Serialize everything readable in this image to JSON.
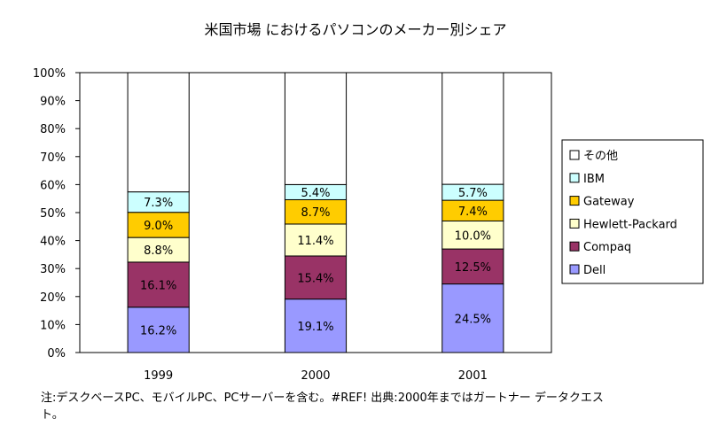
{
  "chart_data": {
    "type": "bar",
    "stacked": true,
    "normalized": true,
    "title": "米国市場 におけるパソコンのメーカー別シェア",
    "categories": [
      "1999",
      "2000",
      "2001"
    ],
    "series": [
      {
        "name": "Dell",
        "color": "#9999ff",
        "values": [
          16.2,
          19.1,
          24.5
        ],
        "labels": [
          "16.2%",
          "19.1%",
          "24.5%"
        ]
      },
      {
        "name": "Compaq",
        "color": "#993366",
        "values": [
          16.1,
          15.4,
          12.5
        ],
        "labels": [
          "16.1%",
          "15.4%",
          "12.5%"
        ]
      },
      {
        "name": "Hewlett-Packard",
        "color": "#ffffcc",
        "values": [
          8.8,
          11.4,
          10.0
        ],
        "labels": [
          "8.8%",
          "11.4%",
          "10.0%"
        ]
      },
      {
        "name": "Gateway",
        "color": "#ffcc00",
        "values": [
          9.0,
          8.7,
          7.4
        ],
        "labels": [
          "9.0%",
          "8.7%",
          "7.4%"
        ]
      },
      {
        "name": "IBM",
        "color": "#ccffff",
        "values": [
          7.3,
          5.4,
          5.7
        ],
        "labels": [
          "7.3%",
          "5.4%",
          "5.7%"
        ]
      },
      {
        "name": "その他",
        "color": "#ffffff",
        "values": [
          42.6,
          40.0,
          39.9
        ],
        "labels": [
          "",
          "",
          ""
        ]
      }
    ],
    "yticks": [
      "0%",
      "10%",
      "20%",
      "30%",
      "40%",
      "50%",
      "60%",
      "70%",
      "80%",
      "90%",
      "100%"
    ],
    "ylim": [
      0,
      100
    ],
    "grid": false,
    "legend_position": "right"
  },
  "note": "注:デスクベースPC、モバイルPC、PCサーバーを含む。#REF! 出典:2000年まではガートナー データクエスト。"
}
